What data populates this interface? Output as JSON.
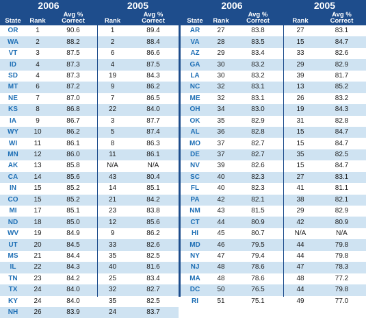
{
  "headers": {
    "year_2006": "2006",
    "year_2005": "2005",
    "state": "State",
    "rank": "Rank",
    "avg_line1": "Avg %",
    "avg_line2": "Correct"
  },
  "left_rows": [
    [
      "OR",
      "1",
      "90.6",
      "1",
      "89.4"
    ],
    [
      "WA",
      "2",
      "88.2",
      "2",
      "88.4"
    ],
    [
      "VT",
      "3",
      "87.5",
      "6",
      "86.6"
    ],
    [
      "ID",
      "4",
      "87.3",
      "4",
      "87.5"
    ],
    [
      "SD",
      "4",
      "87.3",
      "19",
      "84.3"
    ],
    [
      "MT",
      "6",
      "87.2",
      "9",
      "86.2"
    ],
    [
      "NE",
      "7",
      "87.0",
      "7",
      "86.5"
    ],
    [
      "KS",
      "8",
      "86.8",
      "22",
      "84.0"
    ],
    [
      "IA",
      "9",
      "86.7",
      "3",
      "87.7"
    ],
    [
      "WY",
      "10",
      "86.2",
      "5",
      "87.4"
    ],
    [
      "WI",
      "11",
      "86.1",
      "8",
      "86.3"
    ],
    [
      "MN",
      "12",
      "86.0",
      "11",
      "86.1"
    ],
    [
      "AK",
      "13",
      "85.8",
      "N/A",
      "N/A"
    ],
    [
      "CA",
      "14",
      "85.6",
      "43",
      "80.4"
    ],
    [
      "IN",
      "15",
      "85.2",
      "14",
      "85.1"
    ],
    [
      "CO",
      "15",
      "85.2",
      "21",
      "84.2"
    ],
    [
      "MI",
      "17",
      "85.1",
      "23",
      "83.8"
    ],
    [
      "ND",
      "18",
      "85.0",
      "12",
      "85.6"
    ],
    [
      "WV",
      "19",
      "84.9",
      "9",
      "86.2"
    ],
    [
      "UT",
      "20",
      "84.5",
      "33",
      "82.6"
    ],
    [
      "MS",
      "21",
      "84.4",
      "35",
      "82.5"
    ],
    [
      "IL",
      "22",
      "84.3",
      "40",
      "81.6"
    ],
    [
      "TN",
      "23",
      "84.2",
      "25",
      "83.4"
    ],
    [
      "TX",
      "24",
      "84.0",
      "32",
      "82.7"
    ],
    [
      "KY",
      "24",
      "84.0",
      "35",
      "82.5"
    ],
    [
      "NH",
      "26",
      "83.9",
      "24",
      "83.7"
    ]
  ],
  "right_rows": [
    [
      "AR",
      "27",
      "83.8",
      "27",
      "83.1"
    ],
    [
      "VA",
      "28",
      "83.5",
      "15",
      "84.7"
    ],
    [
      "AZ",
      "29",
      "83.4",
      "33",
      "82.6"
    ],
    [
      "GA",
      "30",
      "83.2",
      "29",
      "82.9"
    ],
    [
      "LA",
      "30",
      "83.2",
      "39",
      "81.7"
    ],
    [
      "NC",
      "32",
      "83.1",
      "13",
      "85.2"
    ],
    [
      "ME",
      "32",
      "83.1",
      "26",
      "83.2"
    ],
    [
      "OH",
      "34",
      "83.0",
      "19",
      "84.3"
    ],
    [
      "OK",
      "35",
      "82.9",
      "31",
      "82.8"
    ],
    [
      "AL",
      "36",
      "82.8",
      "15",
      "84.7"
    ],
    [
      "MO",
      "37",
      "82.7",
      "15",
      "84.7"
    ],
    [
      "DE",
      "37",
      "82.7",
      "35",
      "82.5"
    ],
    [
      "NV",
      "39",
      "82.6",
      "15",
      "84.7"
    ],
    [
      "SC",
      "40",
      "82.3",
      "27",
      "83.1"
    ],
    [
      "FL",
      "40",
      "82.3",
      "41",
      "81.1"
    ],
    [
      "PA",
      "42",
      "82.1",
      "38",
      "82.1"
    ],
    [
      "NM",
      "43",
      "81.5",
      "29",
      "82.9"
    ],
    [
      "CT",
      "44",
      "80.9",
      "42",
      "80.9"
    ],
    [
      "HI",
      "45",
      "80.7",
      "N/A",
      "N/A"
    ],
    [
      "MD",
      "46",
      "79.5",
      "44",
      "79.8"
    ],
    [
      "NY",
      "47",
      "79.4",
      "44",
      "79.8"
    ],
    [
      "NJ",
      "48",
      "78.6",
      "47",
      "78.3"
    ],
    [
      "MA",
      "48",
      "78.6",
      "48",
      "77.2"
    ],
    [
      "DC",
      "50",
      "76.5",
      "44",
      "79.8"
    ],
    [
      "RI",
      "51",
      "75.1",
      "49",
      "77.0"
    ]
  ]
}
